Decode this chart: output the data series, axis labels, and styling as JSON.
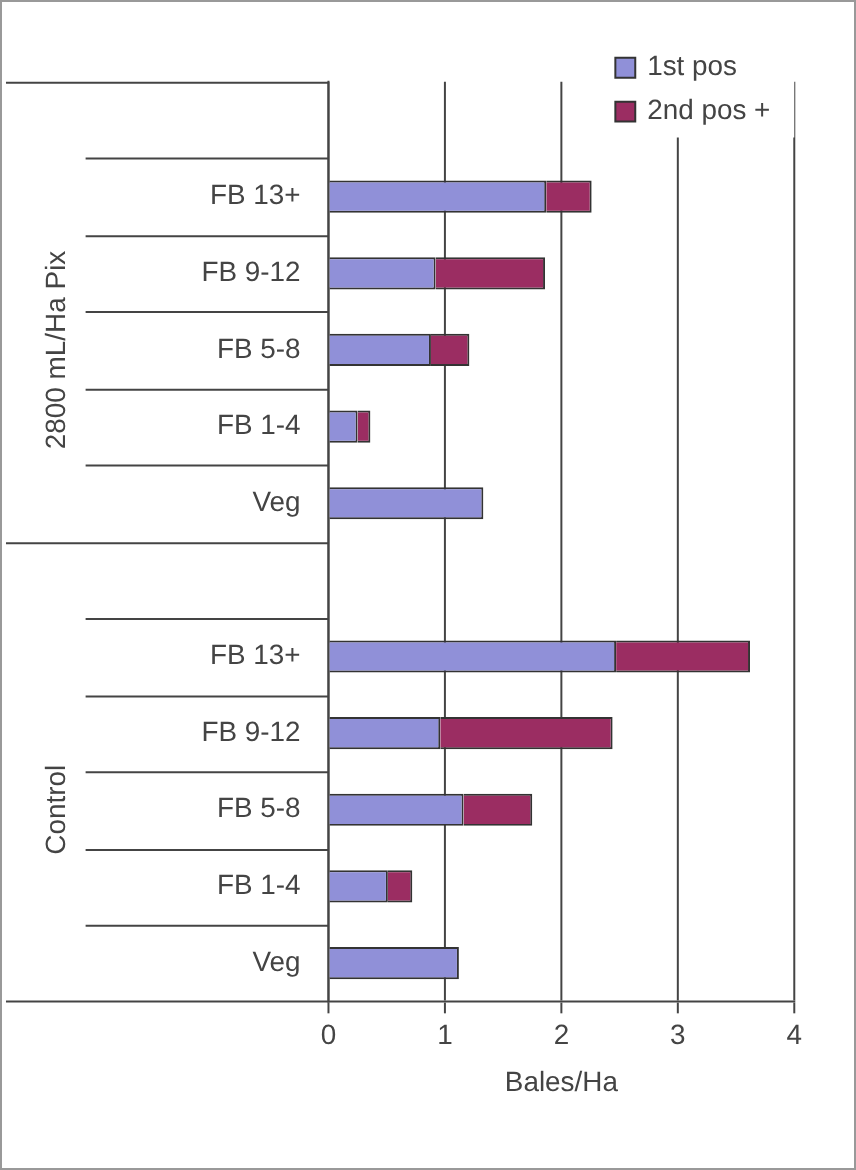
{
  "chart_data": {
    "type": "bar",
    "orientation": "horizontal",
    "stacked": true,
    "categories": [
      null,
      "FB 13+",
      "FB 9-12",
      "FB 5-8",
      "FB 1-4",
      "Veg",
      null,
      "FB 13+",
      "FB 9-12",
      "FB 5-8",
      "FB 1-4",
      "Veg"
    ],
    "series": [
      {
        "name": "1st pos",
        "color": "#9090d8",
        "values": [
          null,
          1.87,
          0.92,
          0.88,
          0.25,
          1.33,
          null,
          2.47,
          0.96,
          1.16,
          0.51,
          1.12
        ]
      },
      {
        "name": "2nd pos +",
        "color": "#9b2d62",
        "values": [
          null,
          0.39,
          0.94,
          0.33,
          0.11,
          null,
          null,
          1.15,
          1.48,
          0.59,
          0.21,
          null
        ]
      }
    ],
    "xlabel": "Bales/Ha",
    "xlim": [
      0,
      4
    ],
    "xticks": [
      0,
      1,
      2,
      3,
      4
    ],
    "grid": "x",
    "legend": "top right",
    "annotations": [
      "2800 mL/Ha Pix",
      "Control"
    ]
  }
}
